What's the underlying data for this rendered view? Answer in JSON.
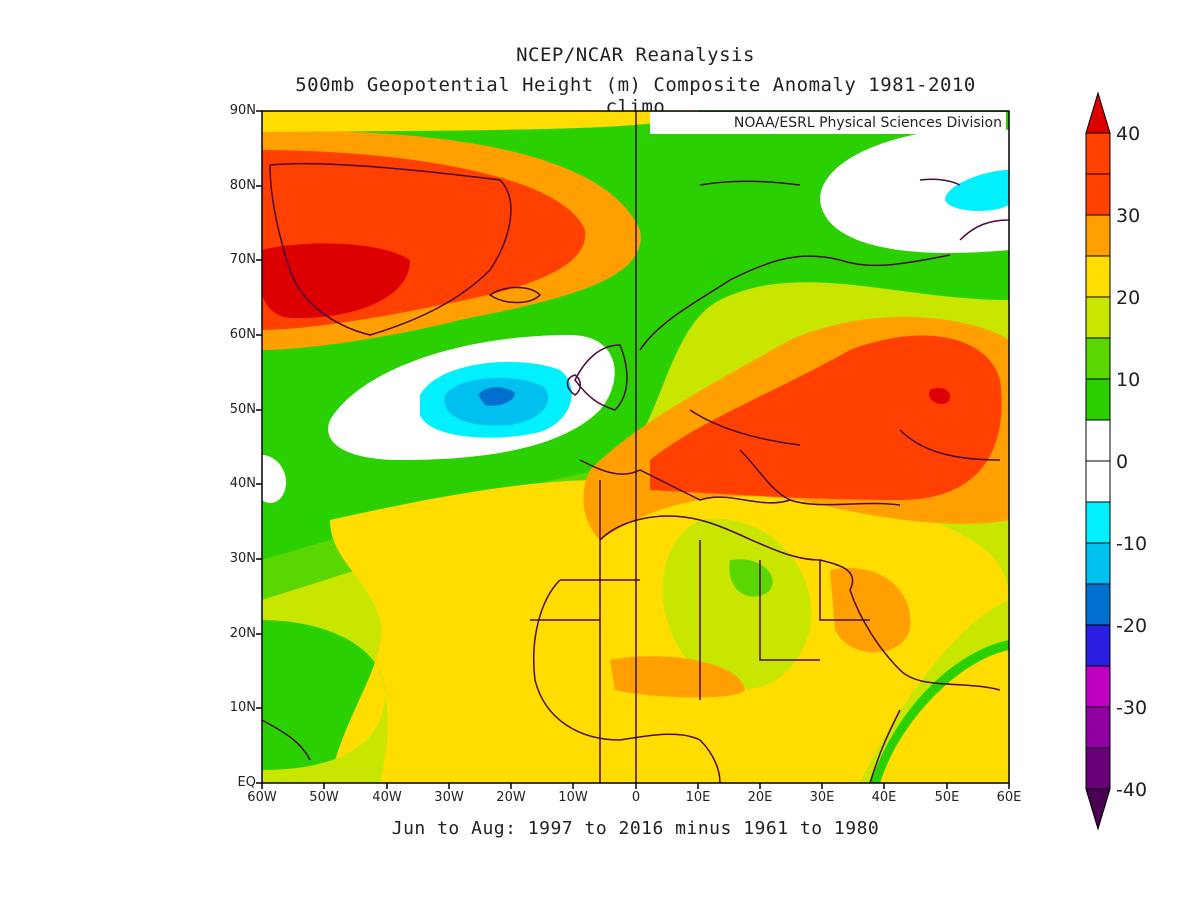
{
  "titles": {
    "line1": "NCEP/NCAR Reanalysis",
    "line2": "500mb Geopotential Height (m) Composite Anomaly 1981-2010 climo",
    "subtitle": "Jun to Aug: 1997 to 2016 minus 1961 to 1980",
    "credit": "NOAA/ESRL Physical Sciences Division"
  },
  "axes": {
    "lat_labels": [
      "90N",
      "80N",
      "70N",
      "60N",
      "50N",
      "40N",
      "30N",
      "20N",
      "10N",
      "EQ"
    ],
    "lon_labels": [
      "60W",
      "50W",
      "40W",
      "30W",
      "20W",
      "10W",
      "0",
      "10E",
      "20E",
      "30E",
      "40E",
      "50E",
      "60E"
    ]
  },
  "colorbar": {
    "labels": [
      "40",
      "30",
      "20",
      "10",
      "0",
      "-10",
      "-20",
      "-30",
      "-40"
    ],
    "colors": [
      "#dd0000",
      "#ff4000",
      "#ffa000",
      "#ffdd00",
      "#c8e600",
      "#5ad600",
      "#2ad000",
      "#ffffff",
      "#ffffff",
      "#00f0ff",
      "#00c0f0",
      "#0070d0",
      "#2a1fe0",
      "#c000c0",
      "#9000a0",
      "#6a0078",
      "#4a0050"
    ]
  },
  "anomaly_colors": {
    "z_neg20": "#0070d0",
    "z_neg10": "#00c0f0",
    "z_neg5": "#00f0ff",
    "z_0": "#ffffff",
    "z_10": "#2ad000",
    "z_15": "#5ad600",
    "z_20": "#c8e600",
    "z_25": "#ffdd00",
    "z_30": "#ffa000",
    "z_35": "#ff4000",
    "z_40": "#dd0000",
    "coast": "#4b0a3c"
  }
}
